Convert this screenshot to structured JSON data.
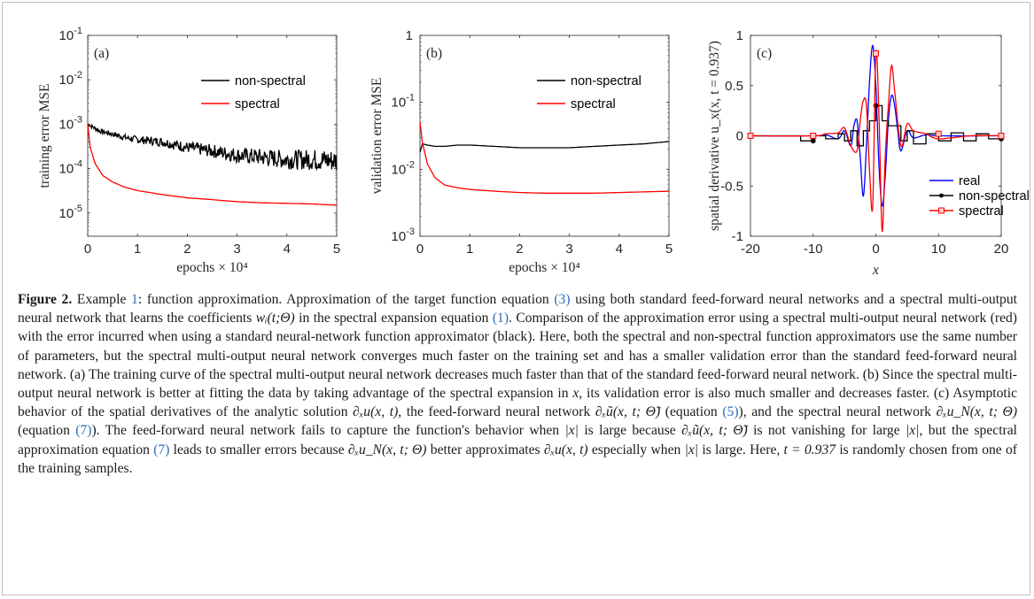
{
  "figure": {
    "panels": [
      {
        "tag": "(a)",
        "ylabel": "training error  MSE",
        "xlabel": "epochs × 10⁴"
      },
      {
        "tag": "(b)",
        "ylabel": "validation error  MSE",
        "xlabel": "epochs × 10⁴"
      },
      {
        "tag": "(c)",
        "ylabel": "spatial derivative  u_x(x, t = 0.937)",
        "xlabel": "x"
      }
    ]
  },
  "chart_data": [
    {
      "type": "line",
      "panel": "(a)",
      "xlabel": "epochs × 10⁴",
      "ylabel": "training error  MSE",
      "xlim": [
        0,
        5
      ],
      "ylim": [
        3e-06,
        0.1
      ],
      "yscale": "log",
      "x_ticks": [
        "0",
        "1",
        "2",
        "3",
        "4",
        "5"
      ],
      "y_ticks": [
        "10⁻⁵",
        "10⁻⁴",
        "10⁻³",
        "10⁻²",
        "10⁻¹"
      ],
      "legend_position": "top-right",
      "series": [
        {
          "name": "non-spectral",
          "color": "#000000",
          "x": [
            0,
            0.25,
            0.5,
            0.75,
            1,
            1.5,
            2,
            2.5,
            3,
            3.5,
            4,
            4.5,
            5
          ],
          "y": [
            0.001,
            0.0007,
            0.0006,
            0.0005,
            0.00045,
            0.0004,
            0.0003,
            0.00025,
            0.0002,
            0.00018,
            0.00016,
            0.00016,
            0.00015
          ]
        },
        {
          "name": "spectral",
          "color": "#ff0000",
          "x": [
            0,
            0.05,
            0.15,
            0.3,
            0.5,
            0.75,
            1,
            1.5,
            2,
            2.5,
            3,
            3.5,
            4,
            4.5,
            5
          ],
          "y": [
            0.001,
            0.0003,
            0.00013,
            7e-05,
            5e-05,
            3.8e-05,
            3.2e-05,
            2.6e-05,
            2.2e-05,
            2e-05,
            1.8e-05,
            1.7e-05,
            1.65e-05,
            1.6e-05,
            1.5e-05
          ]
        }
      ]
    },
    {
      "type": "line",
      "panel": "(b)",
      "xlabel": "epochs × 10⁴",
      "ylabel": "validation error  MSE",
      "xlim": [
        0,
        5
      ],
      "ylim": [
        0.001,
        1
      ],
      "yscale": "log",
      "x_ticks": [
        "0",
        "1",
        "2",
        "3",
        "4",
        "5"
      ],
      "y_ticks": [
        "10⁻³",
        "10⁻²",
        "10⁻¹",
        "1"
      ],
      "legend_position": "top-right",
      "series": [
        {
          "name": "non-spectral",
          "color": "#000000",
          "x": [
            0,
            0.05,
            0.15,
            0.3,
            0.5,
            0.75,
            1,
            1.5,
            2,
            2.5,
            3,
            3.5,
            4,
            4.5,
            5
          ],
          "y": [
            0.018,
            0.024,
            0.023,
            0.022,
            0.022,
            0.023,
            0.023,
            0.022,
            0.021,
            0.021,
            0.021,
            0.022,
            0.023,
            0.024,
            0.026
          ]
        },
        {
          "name": "spectral",
          "color": "#ff0000",
          "x": [
            0,
            0.05,
            0.15,
            0.3,
            0.5,
            0.75,
            1,
            1.5,
            2,
            2.5,
            3,
            3.5,
            4,
            4.5,
            5
          ],
          "y": [
            0.05,
            0.025,
            0.012,
            0.0075,
            0.0058,
            0.0053,
            0.005,
            0.0047,
            0.0045,
            0.0044,
            0.0044,
            0.0044,
            0.0045,
            0.0046,
            0.0047
          ]
        }
      ]
    },
    {
      "type": "line",
      "panel": "(c)",
      "xlabel": "x",
      "ylabel": "spatial derivative  u_x(x, t = 0.937)",
      "xlim": [
        -20,
        20
      ],
      "ylim": [
        -1,
        1
      ],
      "x_ticks": [
        "-20",
        "-10",
        "0",
        "10",
        "20"
      ],
      "y_ticks": [
        "-1",
        "-0.5",
        "0",
        "0.5",
        "1"
      ],
      "legend_position": "bottom-right",
      "series": [
        {
          "name": "real",
          "color": "#0000ff",
          "x": [
            -20,
            -10,
            -8,
            -6,
            -5,
            -4,
            -3.5,
            -3,
            -2.5,
            -2,
            -1.5,
            -1,
            -0.5,
            0,
            0.5,
            1,
            1.5,
            2,
            2.5,
            3,
            3.5,
            4,
            5,
            6,
            8,
            10,
            20
          ],
          "y": [
            0,
            0,
            0.01,
            -0.03,
            0.05,
            -0.1,
            0.1,
            0.15,
            -0.2,
            -0.6,
            -0.1,
            0.55,
            0.9,
            0.5,
            -0.3,
            -0.7,
            -0.4,
            0.15,
            0.4,
            0.3,
            0.05,
            -0.15,
            0.05,
            -0.02,
            0.01,
            0,
            0
          ]
        },
        {
          "name": "non-spectral",
          "color": "#000000",
          "x": [
            -20,
            -14,
            -12,
            -10,
            -8,
            -6,
            -5,
            -4,
            -3,
            -2,
            -1,
            0,
            1,
            2,
            3,
            4,
            5,
            6,
            8,
            10,
            12,
            14,
            16,
            18,
            20
          ],
          "y": [
            0,
            0,
            -0.05,
            0,
            -0.03,
            0.02,
            -0.05,
            0.05,
            -0.1,
            0.05,
            0.15,
            0.3,
            0.15,
            0.1,
            0.1,
            -0.05,
            0.05,
            -0.08,
            0.02,
            -0.05,
            0.03,
            -0.05,
            0.02,
            -0.03,
            0
          ]
        },
        {
          "name": "spectral",
          "color": "#ff0000",
          "x": [
            -20,
            -10,
            -8,
            -6,
            -5,
            -4,
            -3,
            -2.5,
            -2,
            -1.5,
            -1,
            -0.5,
            0,
            0.5,
            1,
            1.5,
            2,
            2.5,
            3,
            4,
            5,
            6,
            8,
            10,
            15,
            20
          ],
          "y": [
            0,
            0,
            0.02,
            0.03,
            0.08,
            -0.1,
            -0.15,
            0.15,
            0.35,
            0.3,
            -0.35,
            -0.7,
            0.82,
            0.2,
            -0.95,
            -0.2,
            0.3,
            0.7,
            0.45,
            -0.1,
            0.12,
            0.05,
            0.02,
            -0.03,
            0,
            0
          ]
        }
      ]
    }
  ],
  "caption": {
    "label": "Figure 2.",
    "p1": " Example ",
    "ref1": "1",
    "p2": ": function approximation. Approximation of the target function equation ",
    "ref2": "(3)",
    "p3": " using both standard feed-forward neural networks and a spectral multi-output neural network that learns the coefficients ",
    "math1": "wᵢ(t;Θ)",
    "p4": " in the spectral expansion equation ",
    "ref3": "(1)",
    "p5": ". Comparison of the approximation error using a spectral multi-output neural network (red) with the error incurred when using a standard neural-network function approximator (black). Here, both the spectral and non-spectral function approximators use the same number of parameters, but the spectral multi-output neural network converges much faster on the training set and has a smaller validation error than the standard feed-forward neural network. (a) The training curve of the spectral multi-output neural network decreases much faster than that of the standard feed-forward neural network. (b) Since the spectral multi-output neural network is better at fitting the data by taking advantage of the spectral expansion in ",
    "math2": "x",
    "p6": ", its validation error is also much smaller and decreases faster. (c) Asymptotic behavior of the spatial derivatives of the analytic solution ",
    "math3": "∂ₓu(x, t)",
    "p7": ", the feed-forward neural network ",
    "math4": "∂ₓũ(x, t; Θ̃)",
    "p8": " (equation ",
    "ref4": "(5)",
    "p9": "), and the spectral neural network ",
    "math5": "∂ₓu_N(x, t; Θ)",
    "p10": " (equation ",
    "ref5": "(7)",
    "p11": "). The feed-forward neural network fails to capture the function's behavior when ",
    "math6": "|x|",
    "p12": " is large because ",
    "math7": "∂ₓũ(x, t; Θ̃)",
    "p13": " is not vanishing for large ",
    "math8": "|x|",
    "p14": ", but the spectral approximation equation ",
    "ref6": "(7)",
    "p15": " leads to smaller errors because ",
    "math9": "∂ₓu_N(x, t; Θ)",
    "p16": " better approximates ",
    "math10": "∂ₓu(x, t)",
    "p17": " especially when ",
    "math11": "|x|",
    "p18": " is large. Here, ",
    "math12": "t = 0.937",
    "p19": " is randomly chosen from one of the training samples."
  }
}
